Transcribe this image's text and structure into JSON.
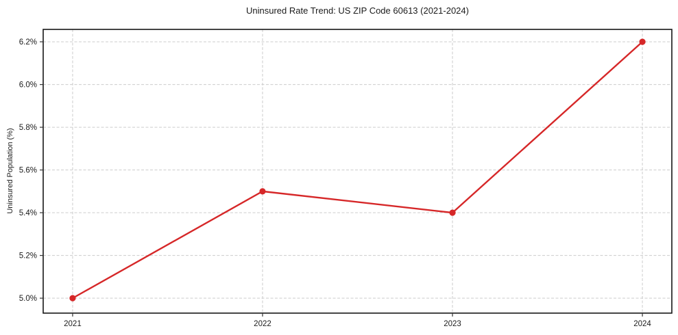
{
  "chart_data": {
    "type": "line",
    "title": "Uninsured Rate Trend: US ZIP Code 60613 (2021-2024)",
    "xlabel": "",
    "ylabel": "Uninsured Population (%)",
    "x": [
      2021,
      2022,
      2023,
      2024
    ],
    "series": [
      {
        "name": "uninsured-rate",
        "values": [
          5.0,
          5.5,
          5.4,
          6.2
        ],
        "color": "#d62728",
        "line_width": 2.4,
        "marker": "circle",
        "marker_radius": 4.6
      }
    ],
    "x_ticks": [
      2021,
      2022,
      2023,
      2024
    ],
    "x_tick_labels": [
      "2021",
      "2022",
      "2023",
      "2024"
    ],
    "y_ticks": [
      5.0,
      5.2,
      5.4,
      5.6,
      5.8,
      6.0,
      6.2
    ],
    "y_tick_labels": [
      "5.0%",
      "5.2%",
      "5.4%",
      "5.6%",
      "5.8%",
      "6.0%",
      "6.2%"
    ],
    "xlim": [
      2020.845,
      2024.155
    ],
    "ylim": [
      4.93,
      6.258
    ],
    "grid": true,
    "grid_color": "#cccccc",
    "grid_dash": "4 2.5",
    "spine_color": "#151515",
    "tick_color": "#333333",
    "legend": false
  }
}
